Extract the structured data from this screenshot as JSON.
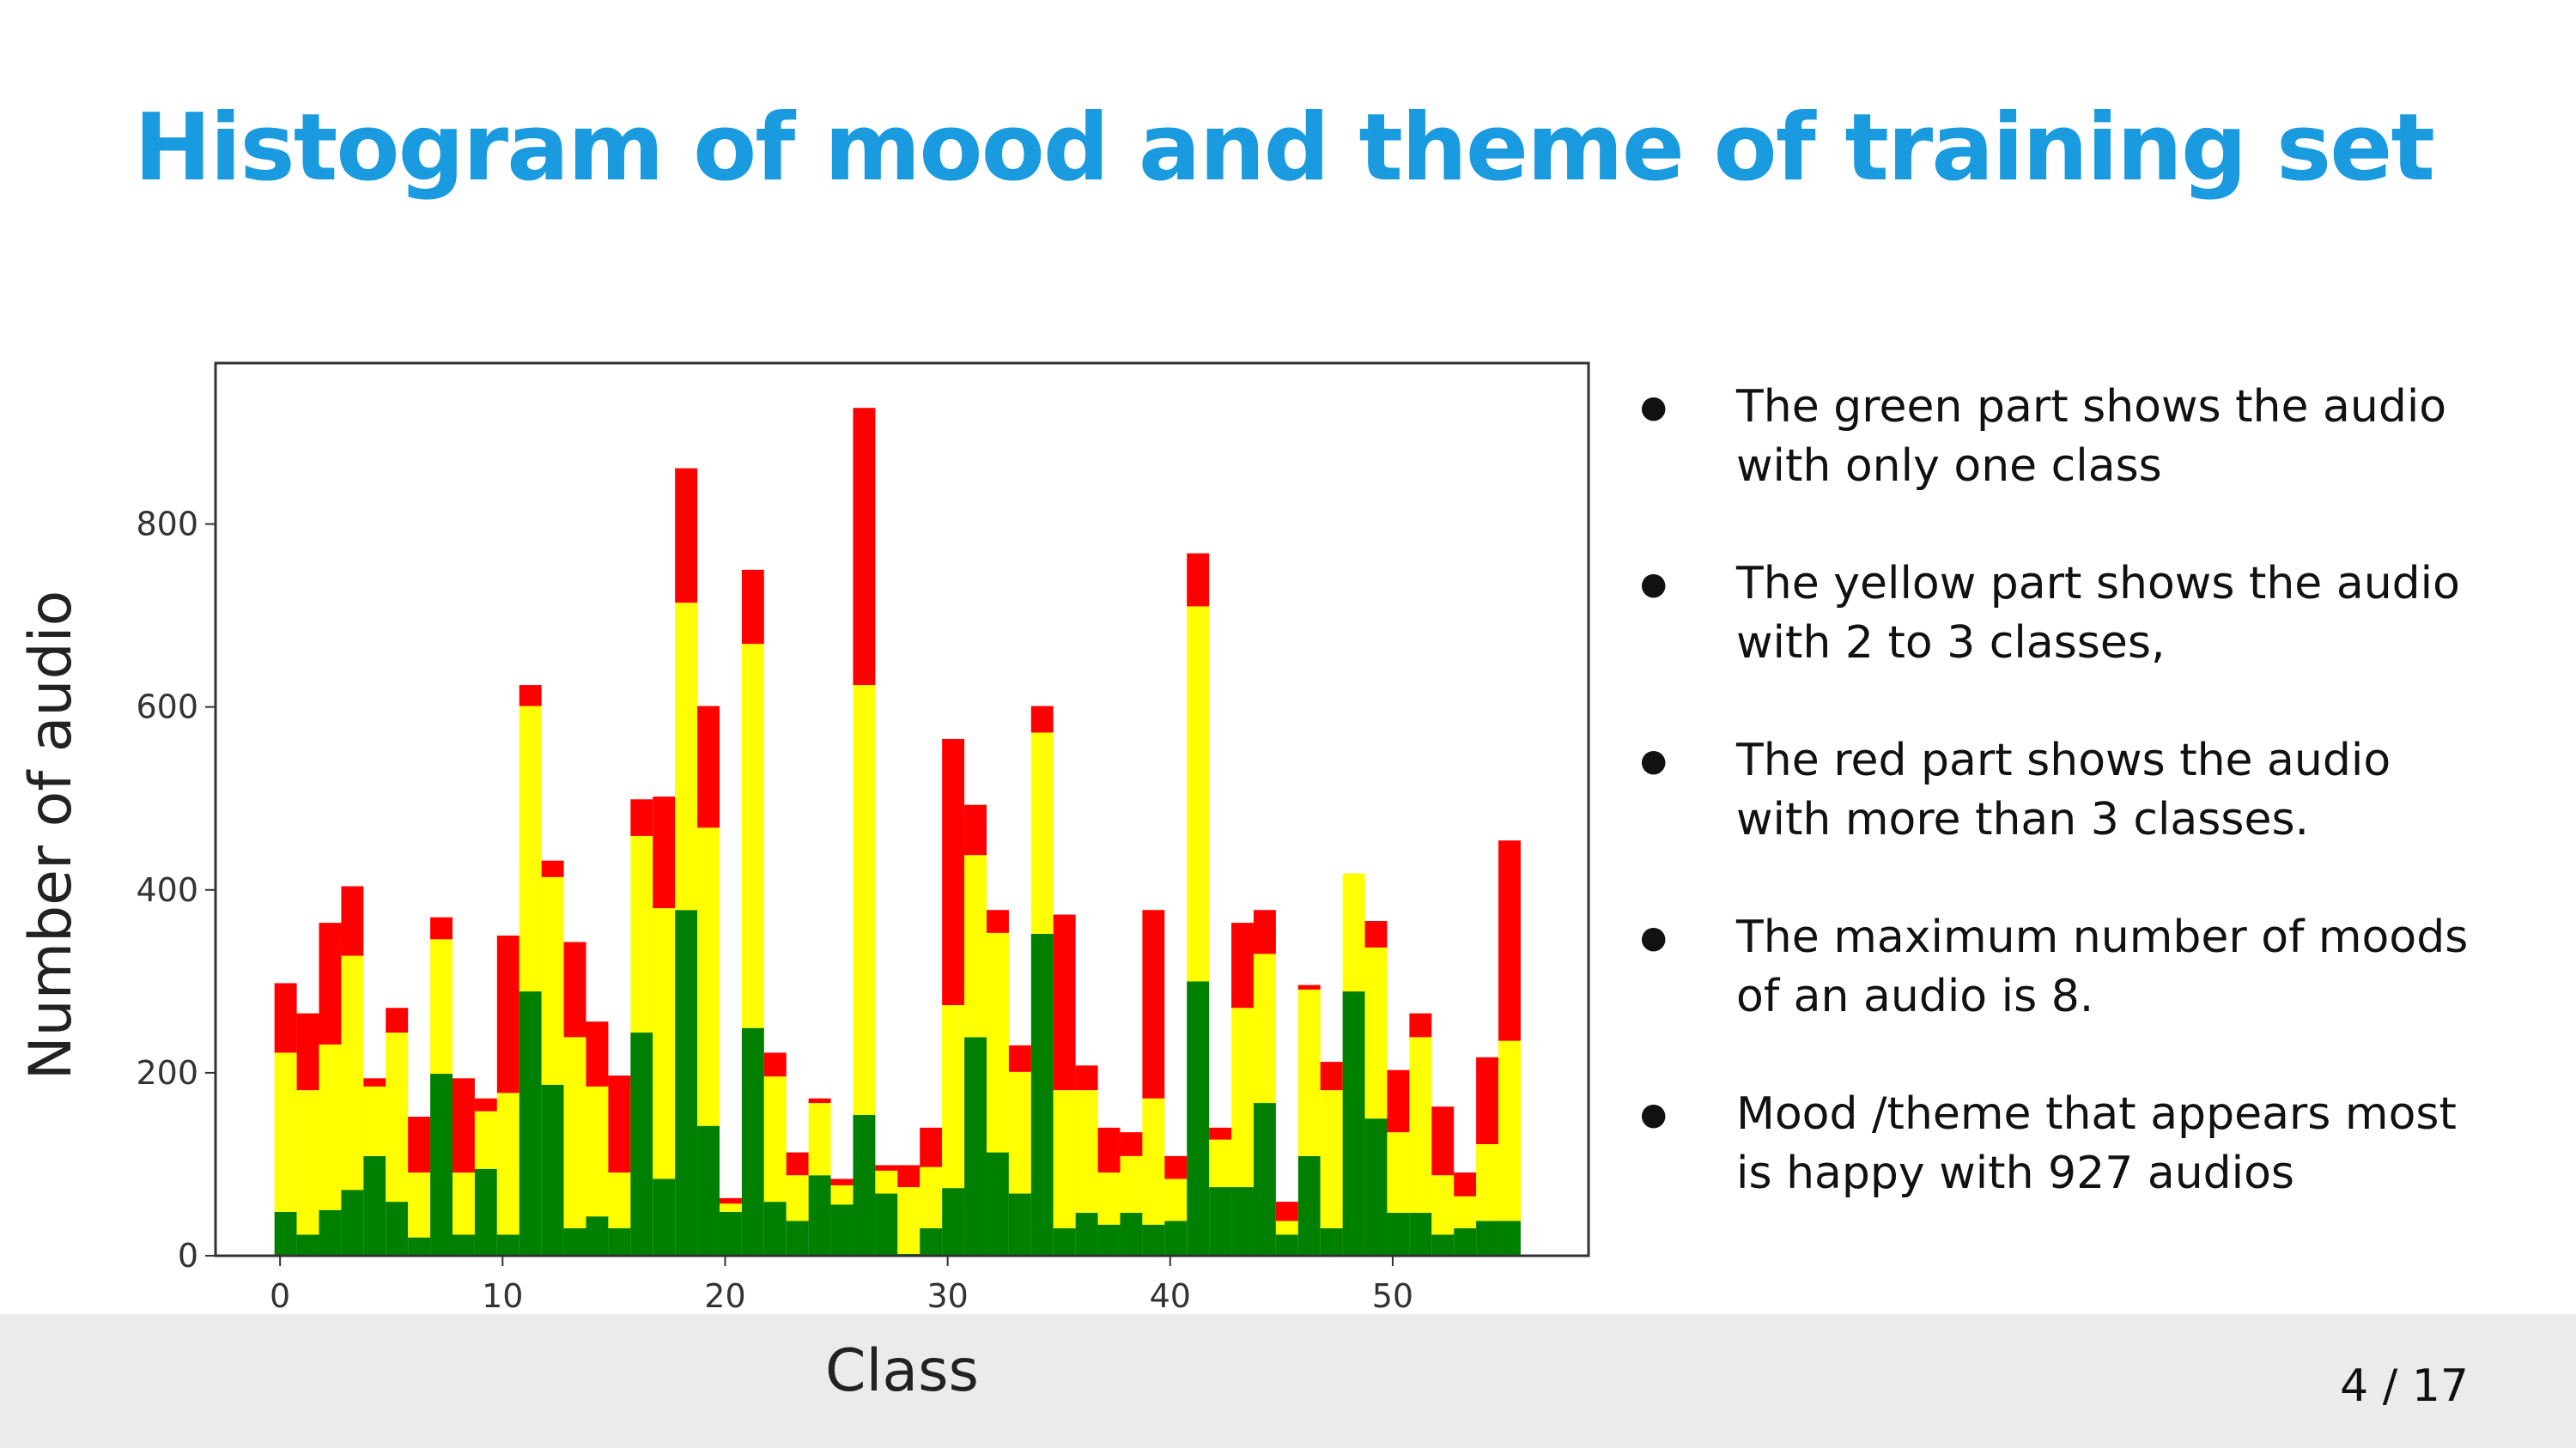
{
  "title": "Histogram of mood and theme of training set",
  "bullets": [
    "The green part shows the audio with only one class",
    "The yellow part shows the audio with 2 to 3 classes,",
    "The red part shows the audio with more than 3 classes.",
    "The maximum number of moods of an audio is 8.",
    "Mood /theme that appears most is happy with 927 audios"
  ],
  "page_number": "4 / 17",
  "chart_data": {
    "type": "bar",
    "stacked": true,
    "xlabel": "Class",
    "ylabel": "Number of audio",
    "x": [
      0,
      1,
      2,
      3,
      4,
      5,
      6,
      7,
      8,
      9,
      10,
      11,
      12,
      13,
      14,
      15,
      16,
      17,
      18,
      19,
      20,
      21,
      22,
      23,
      24,
      25,
      26,
      27,
      28,
      29,
      30,
      31,
      32,
      33,
      34,
      35,
      36,
      37,
      38,
      39,
      40,
      41,
      42,
      43,
      44,
      45,
      46,
      47,
      48,
      49,
      50,
      51,
      52,
      53,
      54,
      55
    ],
    "series": [
      {
        "color": "#008000",
        "values": [
          48,
          23,
          50,
          72,
          109,
          59,
          20,
          199,
          23,
          95,
          23,
          289,
          187,
          30,
          43,
          30,
          244,
          84,
          378,
          142,
          48,
          249,
          59,
          38,
          88,
          56,
          154,
          68,
          2,
          30,
          74,
          239,
          113,
          68,
          352,
          30,
          47,
          34,
          47,
          34,
          38,
          300,
          75,
          75,
          167,
          23,
          109,
          30,
          289,
          150,
          47,
          47,
          23,
          30,
          38,
          38
        ]
      },
      {
        "color": "#ffff00",
        "values": [
          174,
          158,
          181,
          256,
          76,
          185,
          71,
          147,
          68,
          63,
          155,
          312,
          227,
          209,
          142,
          61,
          215,
          296,
          336,
          326,
          9,
          420,
          137,
          50,
          79,
          21,
          470,
          25,
          73,
          67,
          200,
          199,
          240,
          133,
          220,
          151,
          134,
          57,
          62,
          138,
          46,
          410,
          52,
          196,
          163,
          15,
          182,
          151,
          129,
          187,
          88,
          192,
          65,
          35,
          84,
          197
        ]
      },
      {
        "color": "#ff0000",
        "values": [
          76,
          84,
          133,
          76,
          9,
          27,
          61,
          24,
          103,
          14,
          172,
          23,
          18,
          104,
          71,
          106,
          40,
          122,
          147,
          133,
          6,
          81,
          26,
          25,
          5,
          7,
          303,
          6,
          24,
          43,
          291,
          55,
          25,
          29,
          29,
          192,
          27,
          49,
          26,
          206,
          25,
          58,
          13,
          93,
          48,
          21,
          5,
          31,
          0,
          29,
          68,
          26,
          75,
          26,
          95,
          219
        ]
      }
    ],
    "xlim": [
      -2.9,
      58.8
    ],
    "ylim": [
      0,
      976
    ],
    "xticks": [
      0,
      10,
      20,
      30,
      40,
      50
    ],
    "yticks": [
      0,
      200,
      400,
      600,
      800
    ]
  }
}
